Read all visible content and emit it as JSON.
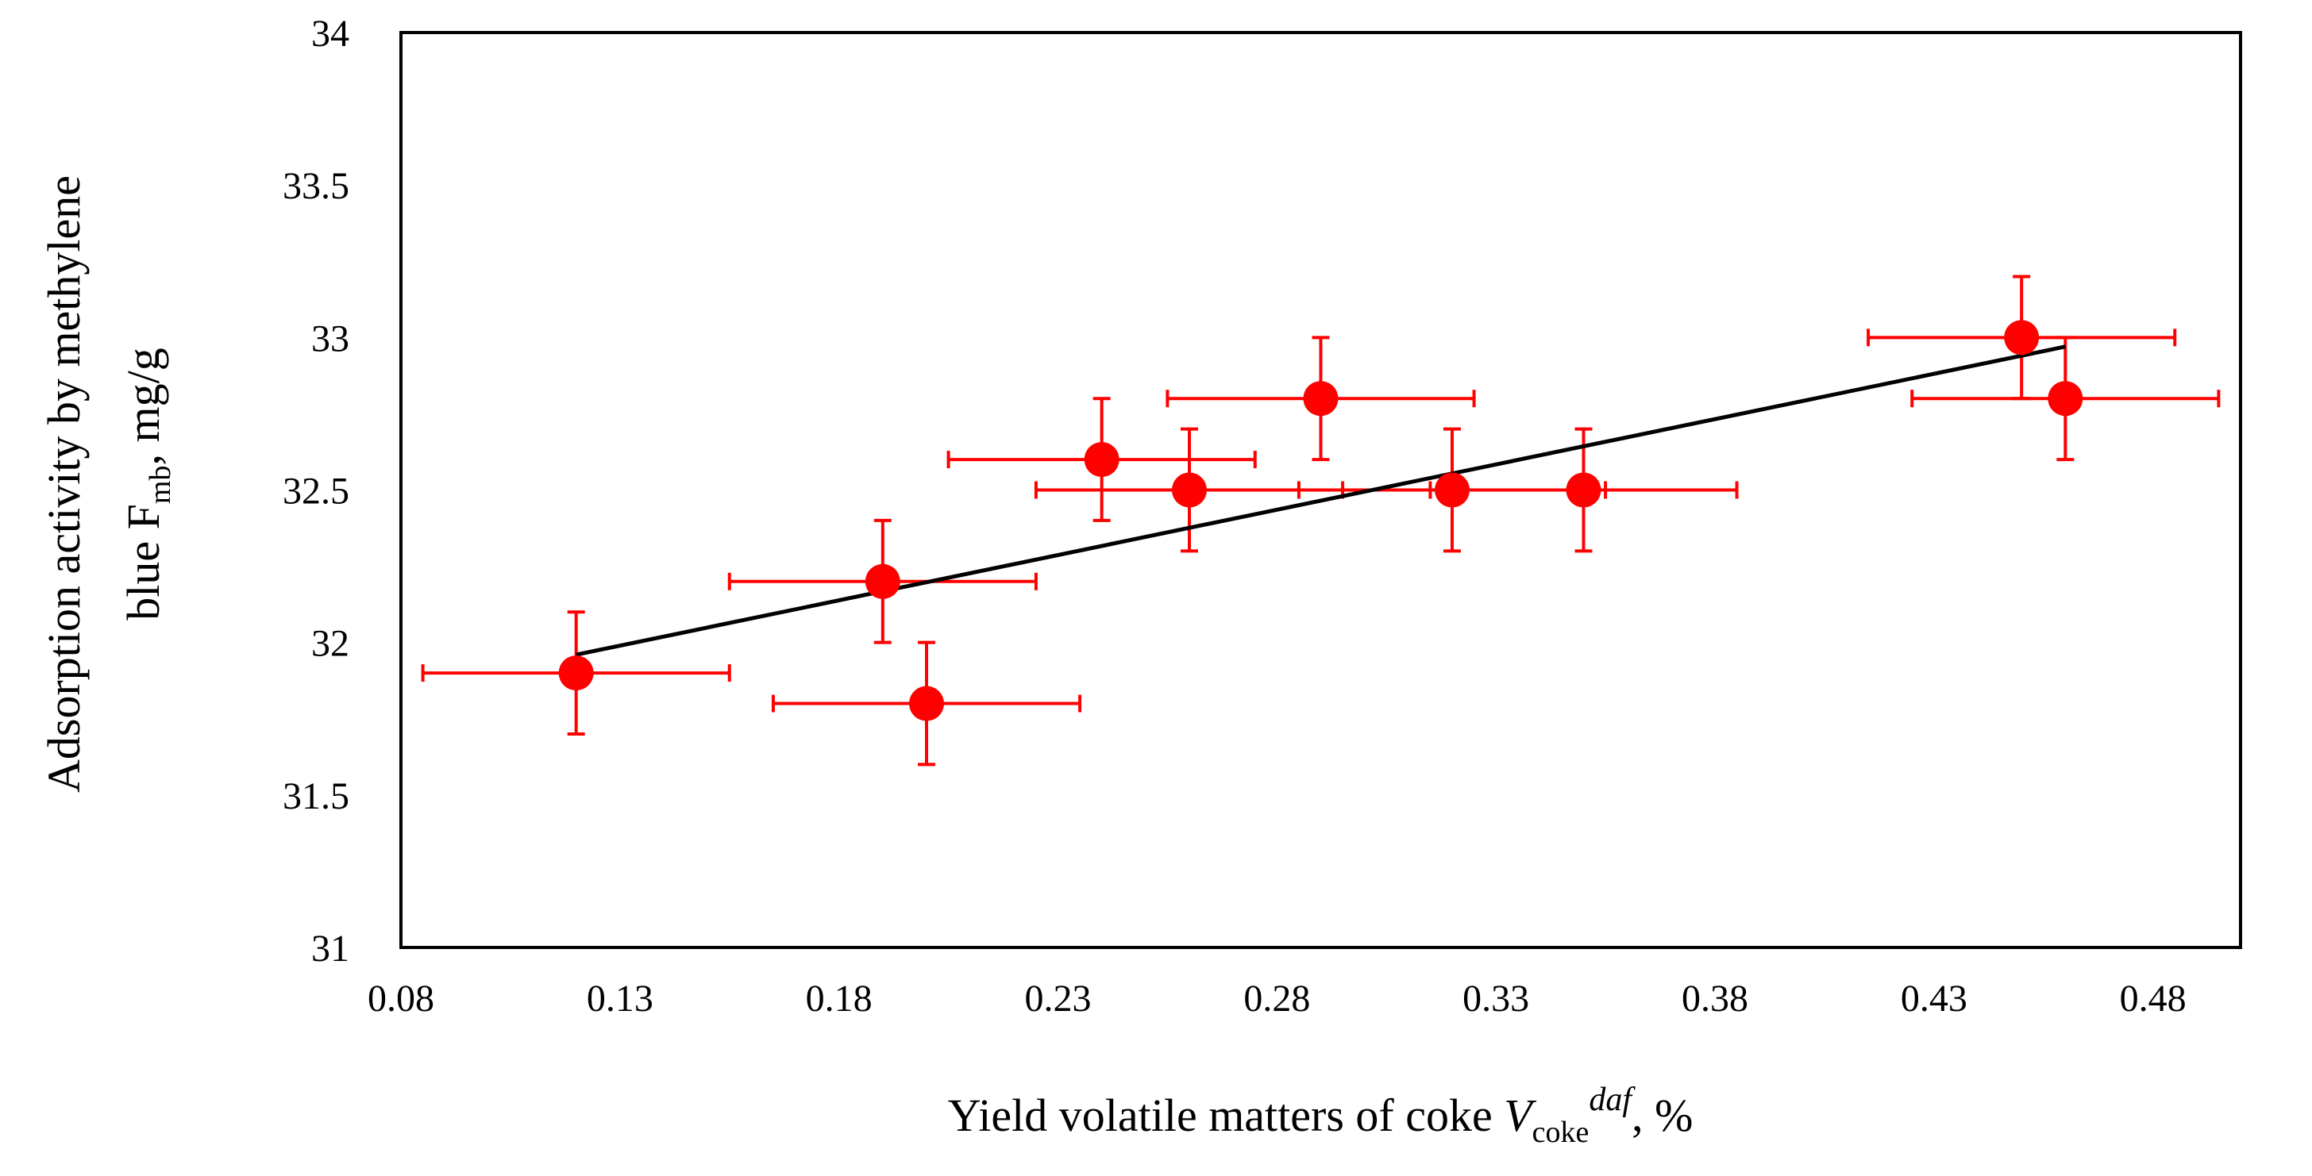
{
  "chart_data": {
    "type": "scatter",
    "xlabel": {
      "main": "Yield volatile matters of coke ",
      "var": "V",
      "sub": "coke",
      "sup": "daf",
      "tail": ", %"
    },
    "ylabel": {
      "line1": "Adsorption activity by methylene",
      "line2_main": "blue F",
      "line2_sub": "mb",
      "line2_tail": ", mg/g"
    },
    "xlim": [
      0.08,
      0.5
    ],
    "ylim": [
      31,
      34
    ],
    "xticks": [
      0.08,
      0.13,
      0.18,
      0.23,
      0.28,
      0.33,
      0.38,
      0.43,
      0.48
    ],
    "xtick_labels": [
      "0.08",
      "0.13",
      "0.18",
      "0.23",
      "0.28",
      "0.33",
      "0.38",
      "0.43",
      "0.48"
    ],
    "yticks": [
      31,
      31.5,
      32,
      32.5,
      33,
      33.5,
      34
    ],
    "ytick_labels": [
      "31",
      "31.5",
      "32",
      "32.5",
      "33",
      "33.5",
      "34"
    ],
    "grid": false,
    "series": [
      {
        "name": "data",
        "color": "#ff0000",
        "points": [
          {
            "x": 0.12,
            "y": 31.9,
            "xerr": 0.035,
            "yerr": 0.2
          },
          {
            "x": 0.19,
            "y": 32.2,
            "xerr": 0.035,
            "yerr": 0.2
          },
          {
            "x": 0.2,
            "y": 31.8,
            "xerr": 0.035,
            "yerr": 0.2
          },
          {
            "x": 0.24,
            "y": 32.6,
            "xerr": 0.035,
            "yerr": 0.2
          },
          {
            "x": 0.26,
            "y": 32.5,
            "xerr": 0.035,
            "yerr": 0.2
          },
          {
            "x": 0.29,
            "y": 32.8,
            "xerr": 0.035,
            "yerr": 0.2
          },
          {
            "x": 0.32,
            "y": 32.5,
            "xerr": 0.035,
            "yerr": 0.2
          },
          {
            "x": 0.35,
            "y": 32.5,
            "xerr": 0.035,
            "yerr": 0.2
          },
          {
            "x": 0.45,
            "y": 33.0,
            "xerr": 0.035,
            "yerr": 0.2
          },
          {
            "x": 0.46,
            "y": 32.8,
            "xerr": 0.035,
            "yerr": 0.2
          }
        ]
      }
    ],
    "trendline": {
      "color": "#000000",
      "x": [
        0.12,
        0.46
      ],
      "y": [
        31.96,
        32.97
      ]
    }
  }
}
